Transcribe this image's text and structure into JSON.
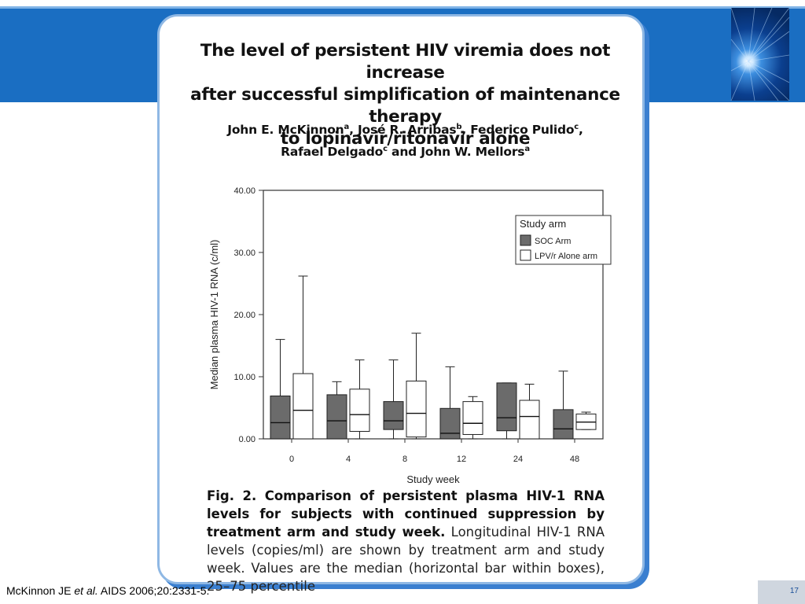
{
  "slide": {
    "citation_author": "McKinnon JE ",
    "citation_etal": "et al.",
    "citation_rest": " AIDS 2006;20:2331-5.",
    "page_number": "17"
  },
  "paper": {
    "title_line1": "The level of persistent HIV viremia does not increase",
    "title_line2": "after successful simplification of maintenance therapy",
    "title_line3": "to lopinavir/ritonavir alone",
    "authors_line1": [
      {
        "t": "John E. McKinnon"
      },
      {
        "sup": "a"
      },
      {
        "t": ", José R. Arribas"
      },
      {
        "sup": "b"
      },
      {
        "t": ", Federico Pulido"
      },
      {
        "sup": "c"
      },
      {
        "t": ","
      }
    ],
    "authors_line2": [
      {
        "t": "Rafael Delgado"
      },
      {
        "sup": "c"
      },
      {
        "t": " and John W. Mellors"
      },
      {
        "sup": "a"
      }
    ],
    "caption_bold": "Fig. 2. Comparison of persistent plasma HIV-1 RNA levels for subjects with continued suppression by treatment arm and study week.",
    "caption_text": " Longitudinal HIV-1 RNA levels (copies/ml) are shown by treatment arm and study week. Values are the median (horizontal bar within boxes), 25–75 percentile"
  },
  "chart_data": {
    "type": "box",
    "xlabel": "Study week",
    "ylabel": "Median plasma HIV-1 RNA (c/ml)",
    "ylim": [
      0,
      40
    ],
    "yticks": [
      "0.00",
      "10.00",
      "20.00",
      "30.00",
      "40.00"
    ],
    "categories": [
      "0",
      "4",
      "8",
      "12",
      "24",
      "48"
    ],
    "legend": {
      "title": "Study arm",
      "position": "top-right"
    },
    "series": [
      {
        "name": "SOC Arm",
        "color": "#6b6b6b",
        "boxes": [
          {
            "min": 0.0,
            "q1": 0.0,
            "median": 2.6,
            "q3": 6.9,
            "max": 16.0
          },
          {
            "min": 0.0,
            "q1": 0.0,
            "median": 2.9,
            "q3": 7.1,
            "max": 9.2
          },
          {
            "min": 0.0,
            "q1": 1.5,
            "median": 2.9,
            "q3": 6.0,
            "max": 12.7
          },
          {
            "min": 0.0,
            "q1": 0.0,
            "median": 0.9,
            "q3": 4.9,
            "max": 11.6
          },
          {
            "min": 0.0,
            "q1": 1.3,
            "median": 3.4,
            "q3": 9.0,
            "max": 9.0
          },
          {
            "min": 0.0,
            "q1": 0.0,
            "median": 1.6,
            "q3": 4.7,
            "max": 10.9
          }
        ]
      },
      {
        "name": "LPV/r Alone arm",
        "color": "#ffffff",
        "boxes": [
          {
            "min": 0.0,
            "q1": 0.0,
            "median": 4.6,
            "q3": 10.5,
            "max": 26.2
          },
          {
            "min": 0.0,
            "q1": 1.2,
            "median": 3.9,
            "q3": 8.0,
            "max": 12.7
          },
          {
            "min": 0.0,
            "q1": 0.3,
            "median": 4.1,
            "q3": 9.3,
            "max": 17.0
          },
          {
            "min": 0.0,
            "q1": 0.7,
            "median": 2.5,
            "q3": 6.0,
            "max": 6.8
          },
          {
            "min": 0.0,
            "q1": 0.0,
            "median": 3.6,
            "q3": 6.2,
            "max": 8.8
          },
          {
            "min": 1.5,
            "q1": 1.5,
            "median": 2.7,
            "q3": 4.0,
            "max": 4.3
          }
        ]
      }
    ]
  }
}
